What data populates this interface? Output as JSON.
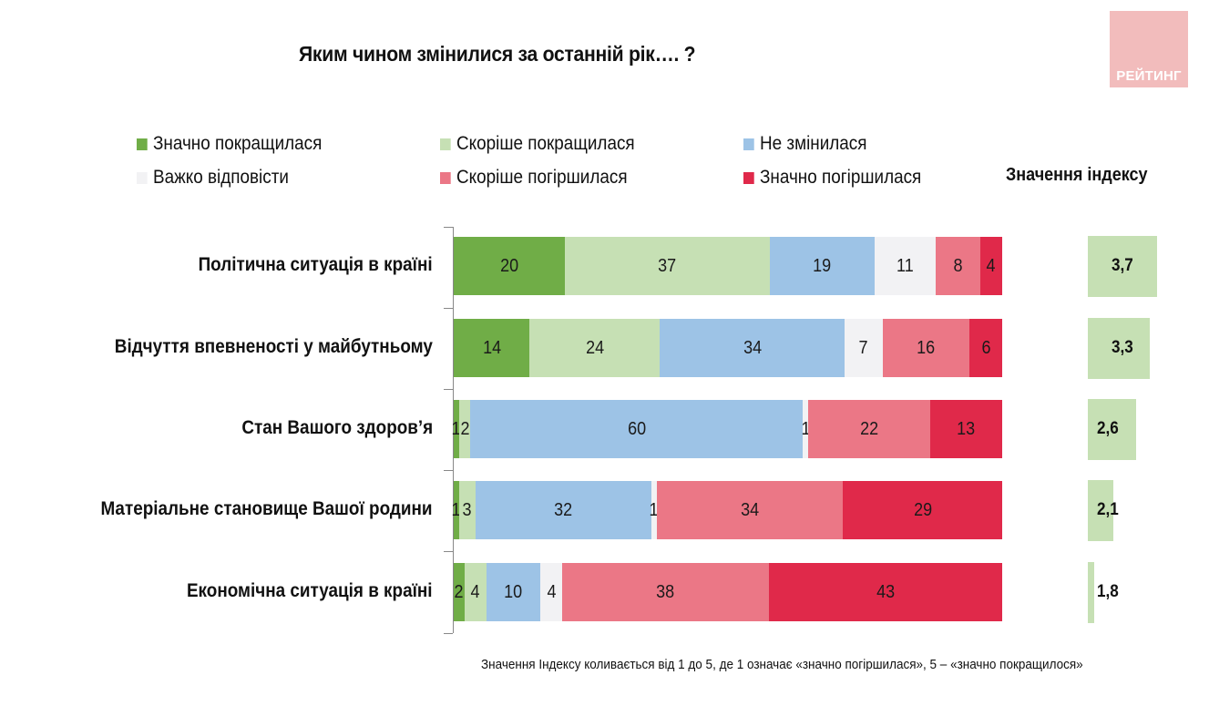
{
  "header": {
    "title": "Яким чином змінилися за останній рік…. ?",
    "logo_text": "РЕЙТИНГ",
    "logo_color": "#f2bcbc"
  },
  "index_header": "Значення індексу",
  "footnote": "Значення Індексу коливається від 1 до 5, де 1 означає «значно погіршилася», 5 – «значно покращилося»",
  "chart_data": {
    "type": "bar",
    "orientation": "horizontal",
    "stacked": true,
    "title": "Яким чином змінилися за останній рік…. ?",
    "xlabel": "",
    "ylabel": "",
    "xlim": [
      0,
      100
    ],
    "grid": false,
    "legend_position": "top",
    "categories": [
      "Політична ситуація в країні",
      "Відчуття впевненості у майбутньому",
      "Стан Вашого здоров’я",
      "Матеріальне становище Вашої родини",
      "Економічна ситуація в країні"
    ],
    "series": [
      {
        "name": "Значно покращилася",
        "color": "#70ad47",
        "values": [
          20,
          14,
          1,
          1,
          2
        ]
      },
      {
        "name": "Скоріше покращилася",
        "color": "#c6e0b4",
        "values": [
          37,
          24,
          2,
          3,
          4
        ]
      },
      {
        "name": "Не змінилася",
        "color": "#9dc3e6",
        "values": [
          19,
          34,
          60,
          32,
          10
        ]
      },
      {
        "name": "Важко відповісти",
        "color": "#f2f2f4",
        "values": [
          11,
          7,
          1,
          1,
          4
        ]
      },
      {
        "name": "Скоріше погіршилася",
        "color": "#eb7786",
        "values": [
          8,
          16,
          22,
          34,
          38
        ]
      },
      {
        "name": "Значно погіршилася",
        "color": "#e0294a",
        "values": [
          4,
          6,
          13,
          29,
          43
        ]
      }
    ],
    "index": {
      "title": "Значення індексу",
      "range": [
        1,
        5
      ],
      "color": "#c6e0b4",
      "values": [
        3.7,
        3.3,
        2.6,
        2.1,
        1.8
      ],
      "labels": [
        "3,7",
        "3,3",
        "2,6",
        "2,1",
        "1,8"
      ]
    }
  }
}
